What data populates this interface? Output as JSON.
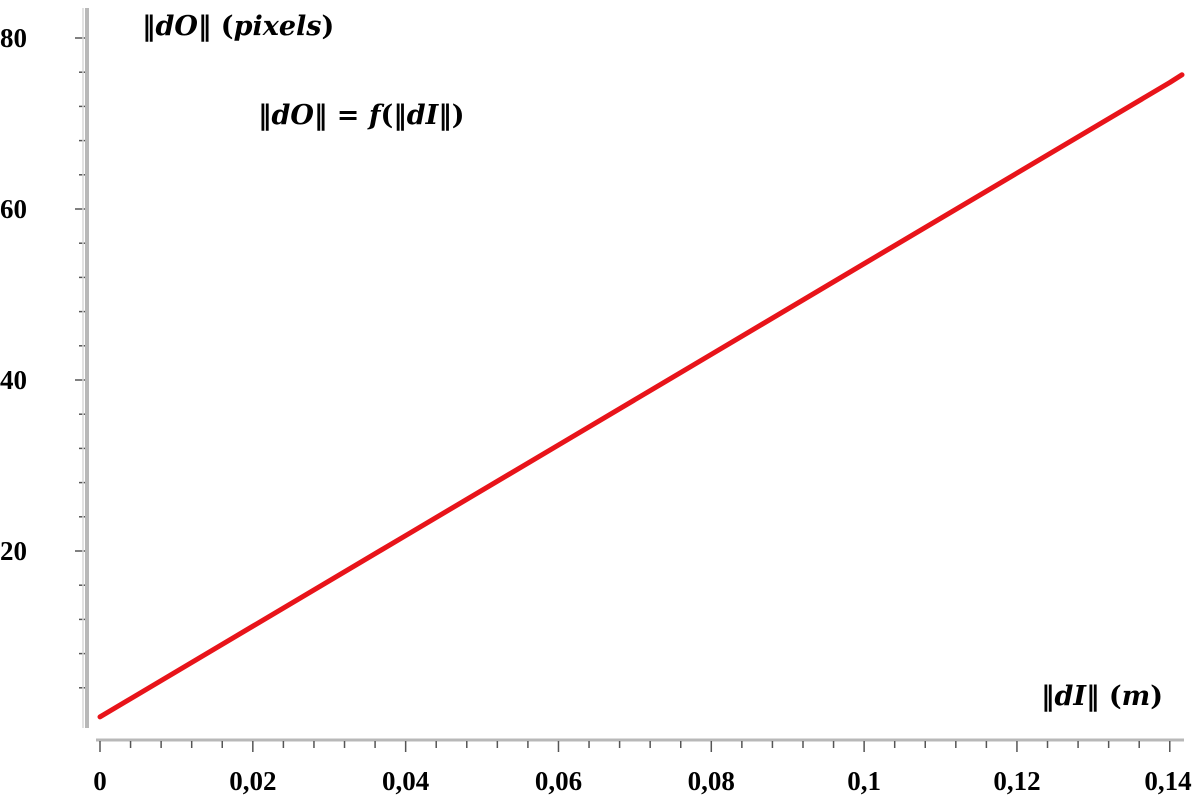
{
  "chart_data": {
    "type": "line",
    "title": "",
    "ylabel": {
      "prefix": "‖",
      "var": "dO",
      "suffix": "‖ (",
      "unit": "pixels",
      "close": ")"
    },
    "xlabel": {
      "prefix": "‖",
      "var": "dI",
      "suffix": "‖ (",
      "unit": "m",
      "close": ")"
    },
    "annotation": {
      "p1": "‖",
      "v1": "dO",
      "p2": "‖ = ",
      "fn": "f",
      "p3": "(‖",
      "v2": "dI",
      "p4": "‖)"
    },
    "xlim": [
      0,
      0.1416
    ],
    "ylim": [
      0,
      80
    ],
    "x_ticks": [
      0,
      0.02,
      0.04,
      0.06,
      0.08,
      0.1,
      0.12,
      0.14
    ],
    "x_tick_labels": [
      "0",
      "0,02",
      "0,04",
      "0,06",
      "0,08",
      "0,1",
      "0,12",
      "0,14"
    ],
    "y_ticks": [
      20,
      40,
      60,
      80
    ],
    "y_tick_labels": [
      "20",
      "40",
      "60",
      "80"
    ],
    "x_minor_step": 0.004,
    "y_minor_step": 4,
    "grid": false,
    "series": [
      {
        "x": [
          0,
          0.02,
          0.04,
          0.06,
          0.08,
          0.1,
          0.12,
          0.14,
          0.1416
        ],
        "y": [
          0.6,
          11.2,
          21.8,
          32.4,
          43.0,
          53.6,
          64.2,
          74.8,
          75.7
        ],
        "color": "#e8141a"
      }
    ],
    "axis_color": "#b8b8b8"
  }
}
